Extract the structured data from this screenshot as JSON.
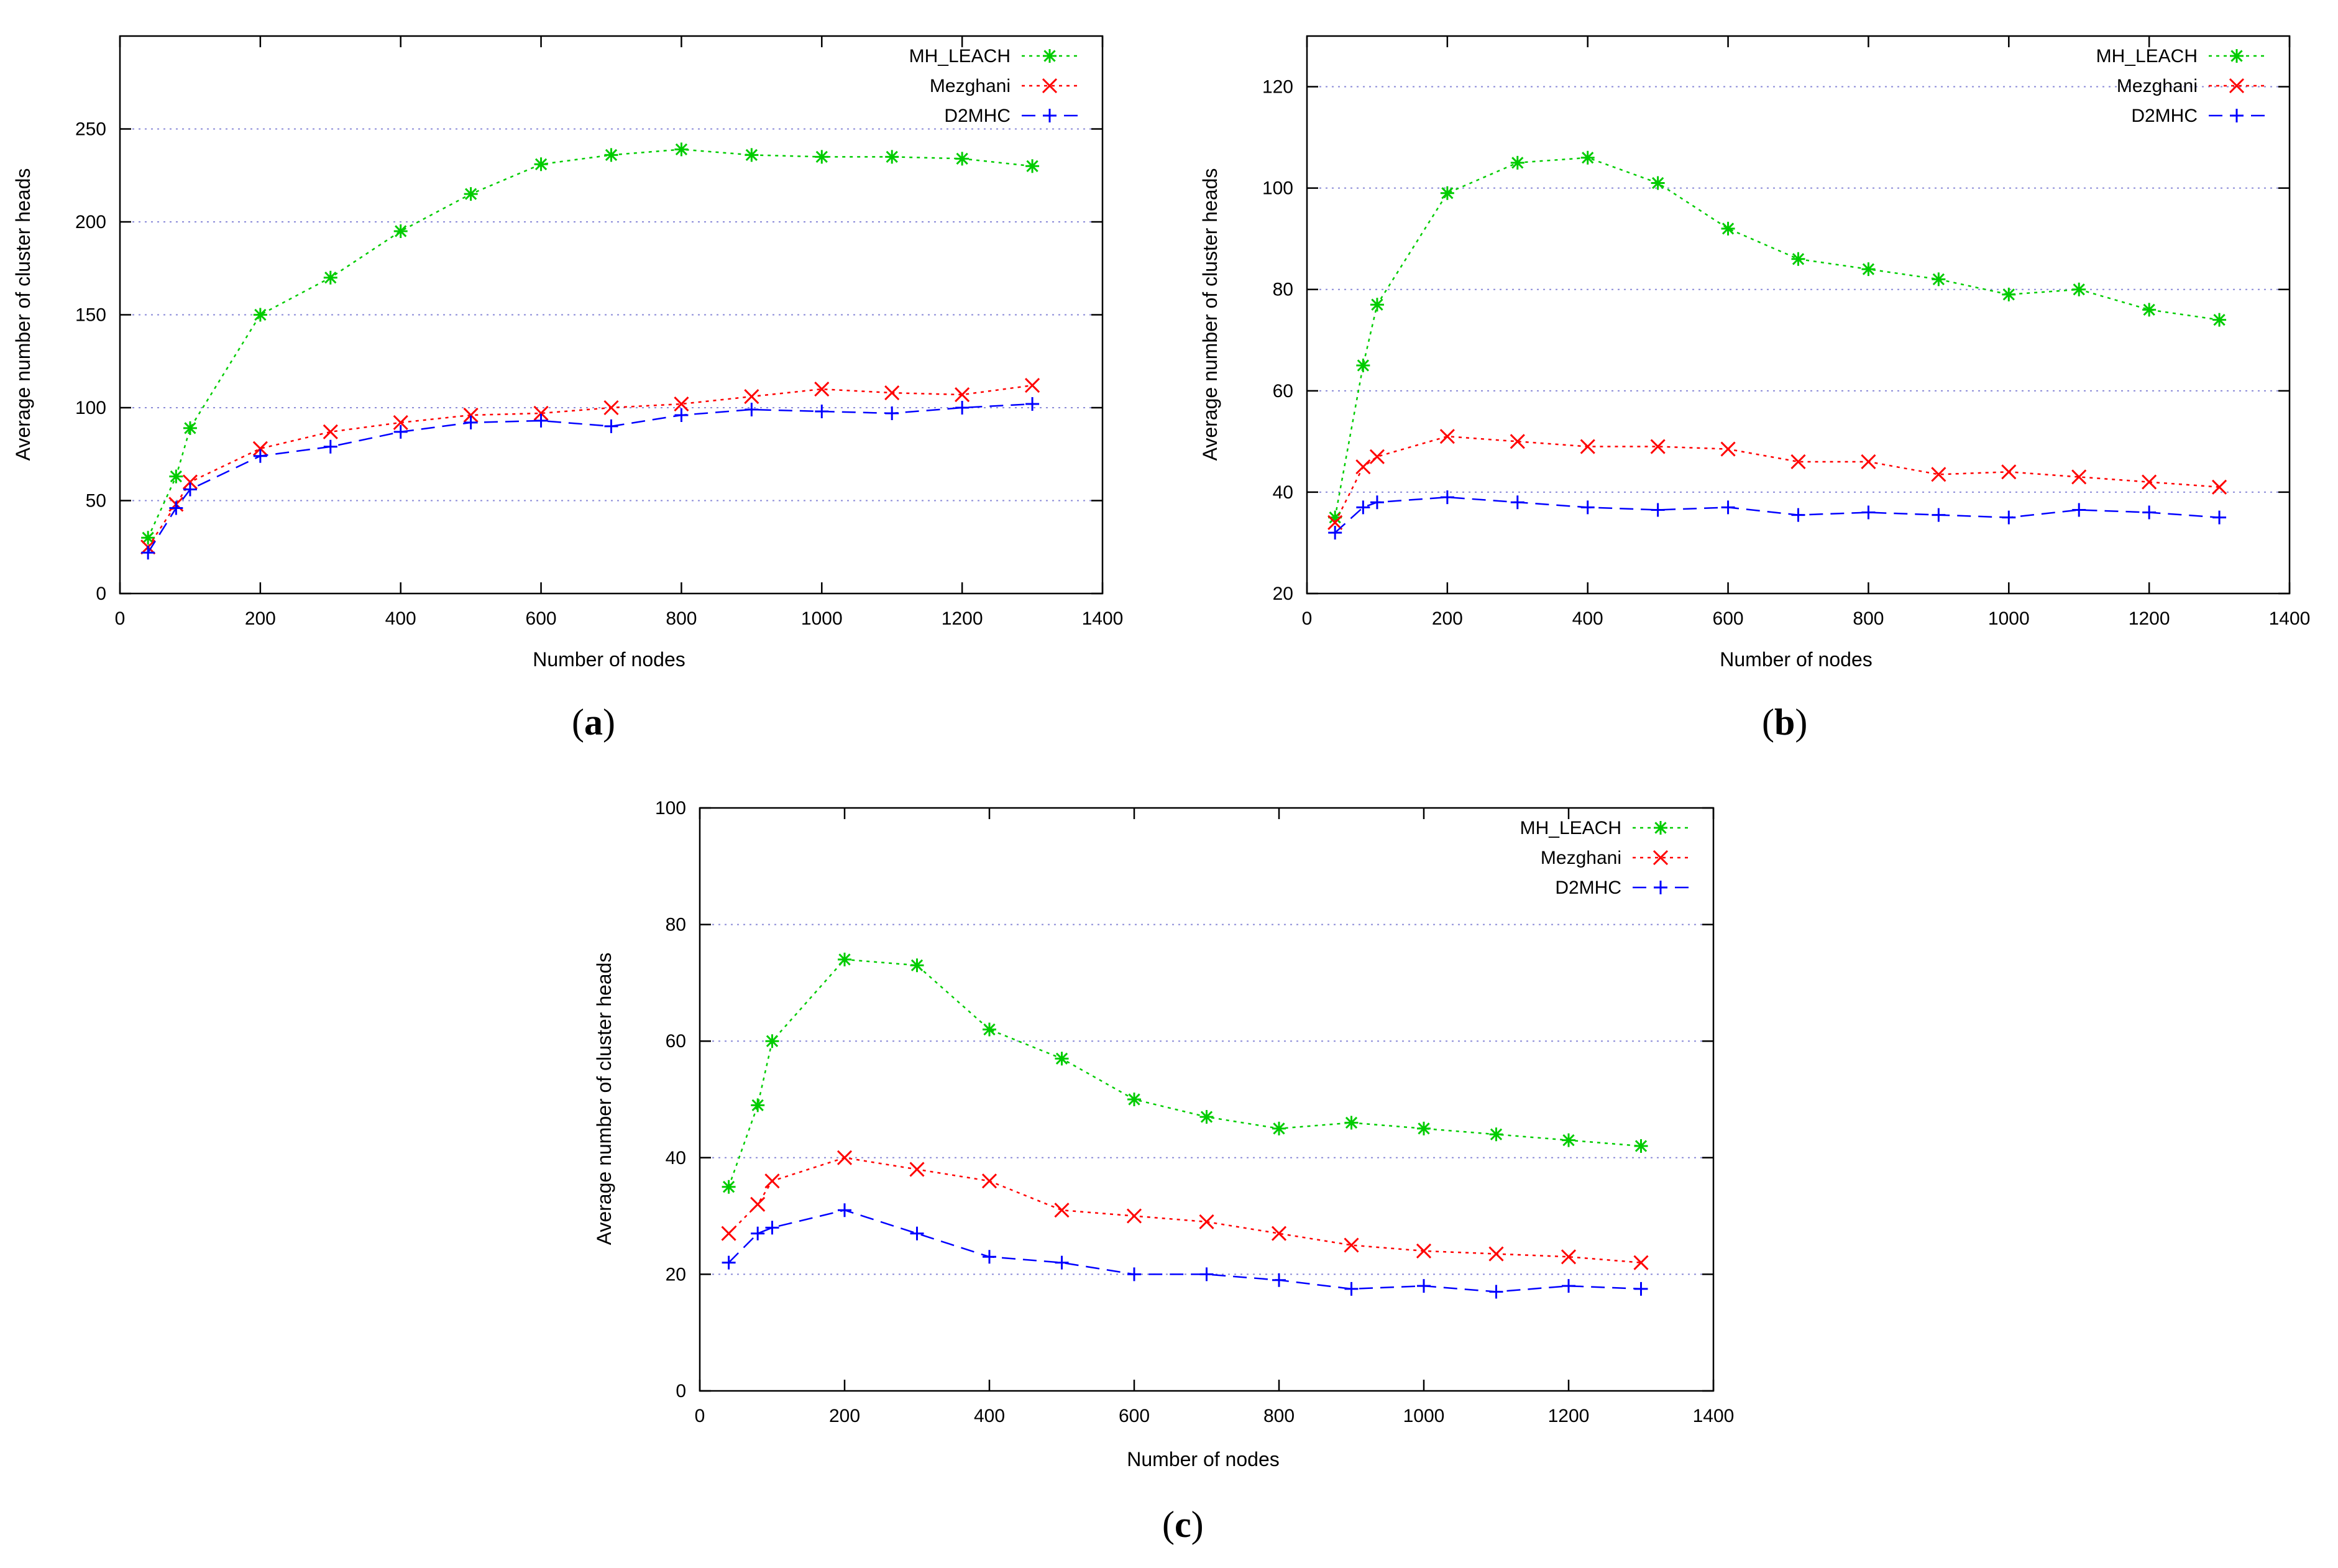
{
  "chart_data": [
    {
      "type": "line",
      "panel_label": "a",
      "x": [
        40,
        80,
        100,
        200,
        300,
        400,
        500,
        600,
        700,
        800,
        900,
        1000,
        1100,
        1200,
        1300
      ],
      "xlabel": "Number of nodes",
      "ylabel": "Average number of cluster heads",
      "xlim": [
        0,
        1400
      ],
      "ylim": [
        0,
        300
      ],
      "xticks": [
        0,
        200,
        400,
        600,
        800,
        1000,
        1200,
        1400
      ],
      "yticks": [
        0,
        50,
        100,
        150,
        200,
        250
      ],
      "grid": true,
      "legend_position": "top-right",
      "series": [
        {
          "name": "MH_LEACH",
          "color": "#00cc00",
          "marker": "star",
          "dash": "dotted",
          "values": [
            30,
            63,
            89,
            150,
            170,
            195,
            215,
            231,
            236,
            239,
            236,
            235,
            235,
            234,
            230
          ]
        },
        {
          "name": "Mezghani",
          "color": "#ff0000",
          "marker": "x",
          "dash": "dotted",
          "values": [
            25,
            48,
            60,
            78,
            87,
            92,
            96,
            97,
            100,
            102,
            106,
            110,
            108,
            107,
            112
          ]
        },
        {
          "name": "D2MHC",
          "color": "#0000ff",
          "marker": "plus",
          "dash": "dashed",
          "values": [
            22,
            46,
            56,
            74,
            79,
            87,
            92,
            93,
            90,
            96,
            99,
            98,
            97,
            100,
            102
          ]
        }
      ]
    },
    {
      "type": "line",
      "panel_label": "b",
      "x": [
        40,
        80,
        100,
        200,
        300,
        400,
        500,
        600,
        700,
        800,
        900,
        1000,
        1100,
        1200,
        1300
      ],
      "xlabel": "Number of nodes",
      "ylabel": "Average number of cluster heads",
      "xlim": [
        0,
        1400
      ],
      "ylim": [
        20,
        130
      ],
      "xticks": [
        0,
        200,
        400,
        600,
        800,
        1000,
        1200,
        1400
      ],
      "yticks": [
        20,
        40,
        60,
        80,
        100,
        120
      ],
      "grid": true,
      "legend_position": "top-right",
      "series": [
        {
          "name": "MH_LEACH",
          "color": "#00cc00",
          "marker": "star",
          "dash": "dotted",
          "values": [
            35,
            65,
            77,
            99,
            105,
            106,
            101,
            92,
            86,
            84,
            82,
            79,
            80,
            76,
            74
          ]
        },
        {
          "name": "Mezghani",
          "color": "#ff0000",
          "marker": "x",
          "dash": "dotted",
          "values": [
            34,
            45,
            47,
            51,
            50,
            49,
            49,
            48.5,
            46,
            46,
            43.5,
            44,
            43,
            42,
            41
          ]
        },
        {
          "name": "D2MHC",
          "color": "#0000ff",
          "marker": "plus",
          "dash": "dashed",
          "values": [
            32,
            37,
            38,
            39,
            38,
            37,
            36.5,
            37,
            35.5,
            36,
            35.5,
            35,
            36.5,
            36,
            35
          ]
        }
      ]
    },
    {
      "type": "line",
      "panel_label": "c",
      "x": [
        40,
        80,
        100,
        200,
        300,
        400,
        500,
        600,
        700,
        800,
        900,
        1000,
        1100,
        1200,
        1300
      ],
      "xlabel": "Number of nodes",
      "ylabel": "Average number of cluster heads",
      "xlim": [
        0,
        1400
      ],
      "ylim": [
        0,
        100
      ],
      "xticks": [
        0,
        200,
        400,
        600,
        800,
        1000,
        1200,
        1400
      ],
      "yticks": [
        0,
        20,
        40,
        60,
        80,
        100
      ],
      "grid": true,
      "legend_position": "top-right",
      "series": [
        {
          "name": "MH_LEACH",
          "color": "#00cc00",
          "marker": "star",
          "dash": "dotted",
          "values": [
            35,
            49,
            60,
            74,
            73,
            62,
            57,
            50,
            47,
            45,
            46,
            45,
            44,
            43,
            42
          ]
        },
        {
          "name": "Mezghani",
          "color": "#ff0000",
          "marker": "x",
          "dash": "dotted",
          "values": [
            27,
            32,
            36,
            40,
            38,
            36,
            31,
            30,
            29,
            27,
            25,
            24,
            23.5,
            23,
            22
          ]
        },
        {
          "name": "D2MHC",
          "color": "#0000ff",
          "marker": "plus",
          "dash": "dashed",
          "values": [
            22,
            27,
            28,
            31,
            27,
            23,
            22,
            20,
            20,
            19,
            17.5,
            18,
            17,
            18,
            17.5
          ]
        }
      ]
    }
  ]
}
